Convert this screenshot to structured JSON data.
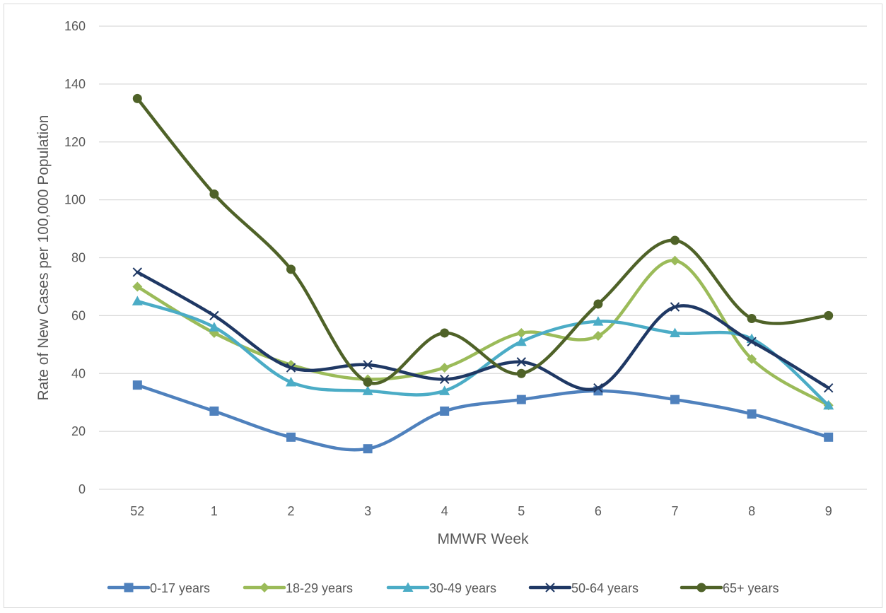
{
  "chart_data": {
    "type": "line",
    "title": "",
    "xlabel": "MMWR Week",
    "ylabel": "Rate of New Cases per 100,000 Population",
    "categories": [
      "52",
      "1",
      "2",
      "3",
      "4",
      "5",
      "6",
      "7",
      "8",
      "9"
    ],
    "ylim": [
      0,
      160
    ],
    "yticks": [
      "0",
      "20",
      "40",
      "60",
      "80",
      "100",
      "120",
      "140",
      "160"
    ],
    "grid": true,
    "legend_position": "bottom",
    "smooth": true,
    "series": [
      {
        "name": "0-17 years",
        "color": "#4f81bd",
        "marker": "square",
        "values": [
          36,
          27,
          18,
          14,
          27,
          31,
          34,
          31,
          26,
          18
        ]
      },
      {
        "name": "18-29 years",
        "color": "#9bbb59",
        "marker": "diamond",
        "values": [
          70,
          54,
          43,
          38,
          42,
          54,
          53,
          79,
          45,
          29
        ]
      },
      {
        "name": "30-49 years",
        "color": "#4bacc6",
        "marker": "triangle",
        "values": [
          65,
          56,
          37,
          34,
          34,
          51,
          58,
          54,
          52,
          29
        ]
      },
      {
        "name": "50-64 years",
        "color": "#1f3864",
        "marker": "x",
        "values": [
          75,
          60,
          42,
          43,
          38,
          44,
          35,
          63,
          51,
          35
        ]
      },
      {
        "name": "65+ years",
        "color": "#4f6228",
        "marker": "circle",
        "values": [
          135,
          102,
          76,
          37,
          54,
          40,
          64,
          86,
          59,
          60
        ]
      }
    ]
  }
}
